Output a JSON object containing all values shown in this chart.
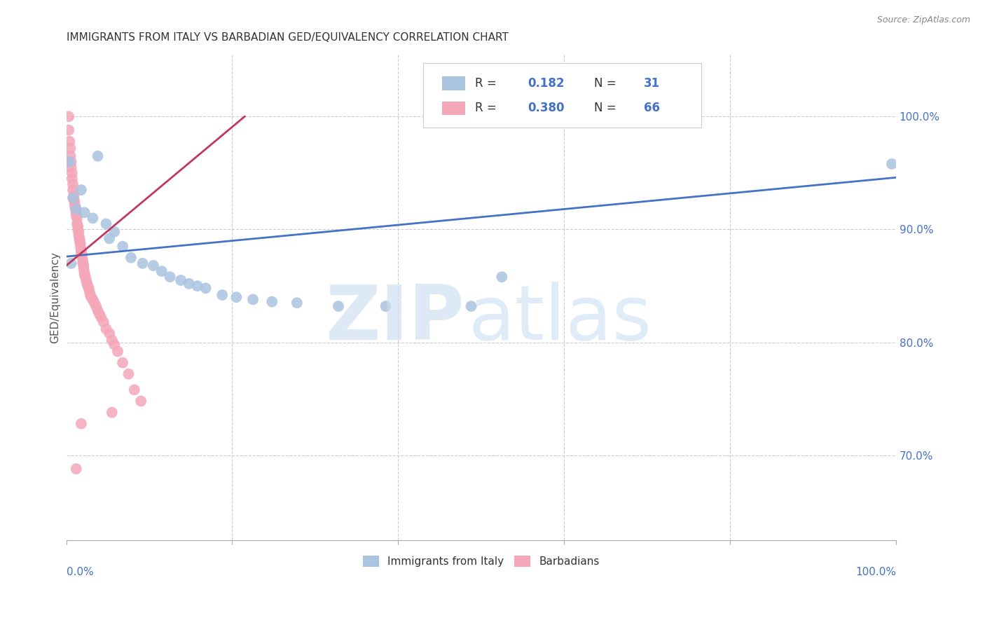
{
  "title": "IMMIGRANTS FROM ITALY VS BARBADIAN GED/EQUIVALENCY CORRELATION CHART",
  "source": "Source: ZipAtlas.com",
  "ylabel": "GED/Equivalency",
  "xlim": [
    0.0,
    1.0
  ],
  "ylim": [
    0.625,
    1.055
  ],
  "legend": {
    "italy_r": "0.182",
    "italy_n": "31",
    "barbadian_r": "0.380",
    "barbadian_n": "66"
  },
  "italy_color": "#a8c4e0",
  "barbadian_color": "#f4a7b9",
  "italy_line_color": "#4472c4",
  "barbadian_line_color": "#c0385a",
  "grid_color": "#cccccc",
  "bg_color": "#ffffff",
  "axis_color": "#4472c4",
  "title_color": "#333333",
  "italy_x": [
    0.004,
    0.038,
    0.018,
    0.008,
    0.012,
    0.022,
    0.032,
    0.048,
    0.058,
    0.052,
    0.068,
    0.078,
    0.092,
    0.105,
    0.115,
    0.125,
    0.138,
    0.148,
    0.158,
    0.168,
    0.188,
    0.205,
    0.225,
    0.248,
    0.278,
    0.328,
    0.385,
    0.488,
    0.525,
    0.995,
    0.006
  ],
  "italy_y": [
    0.96,
    0.965,
    0.935,
    0.928,
    0.918,
    0.915,
    0.91,
    0.905,
    0.898,
    0.892,
    0.885,
    0.875,
    0.87,
    0.868,
    0.863,
    0.858,
    0.855,
    0.852,
    0.85,
    0.848,
    0.842,
    0.84,
    0.838,
    0.836,
    0.835,
    0.832,
    0.832,
    0.832,
    0.858,
    0.958,
    0.87
  ],
  "barb_x": [
    0.003,
    0.003,
    0.004,
    0.005,
    0.005,
    0.006,
    0.006,
    0.007,
    0.007,
    0.008,
    0.008,
    0.009,
    0.009,
    0.01,
    0.01,
    0.011,
    0.011,
    0.012,
    0.012,
    0.013,
    0.013,
    0.014,
    0.014,
    0.015,
    0.015,
    0.016,
    0.016,
    0.017,
    0.017,
    0.018,
    0.018,
    0.019,
    0.019,
    0.02,
    0.02,
    0.021,
    0.021,
    0.022,
    0.022,
    0.023,
    0.024,
    0.025,
    0.026,
    0.027,
    0.028,
    0.029,
    0.03,
    0.032,
    0.034,
    0.036,
    0.038,
    0.04,
    0.042,
    0.045,
    0.048,
    0.052,
    0.055,
    0.058,
    0.062,
    0.068,
    0.075,
    0.082,
    0.09,
    0.055,
    0.018,
    0.012
  ],
  "barb_y": [
    1.0,
    0.988,
    0.978,
    0.972,
    0.965,
    0.96,
    0.955,
    0.95,
    0.945,
    0.94,
    0.935,
    0.93,
    0.928,
    0.925,
    0.922,
    0.92,
    0.918,
    0.915,
    0.912,
    0.91,
    0.905,
    0.903,
    0.9,
    0.898,
    0.895,
    0.892,
    0.89,
    0.888,
    0.885,
    0.882,
    0.88,
    0.878,
    0.875,
    0.872,
    0.87,
    0.868,
    0.865,
    0.862,
    0.86,
    0.858,
    0.855,
    0.852,
    0.85,
    0.848,
    0.845,
    0.842,
    0.84,
    0.838,
    0.835,
    0.832,
    0.828,
    0.825,
    0.822,
    0.818,
    0.812,
    0.808,
    0.802,
    0.798,
    0.792,
    0.782,
    0.772,
    0.758,
    0.748,
    0.738,
    0.728,
    0.688
  ]
}
